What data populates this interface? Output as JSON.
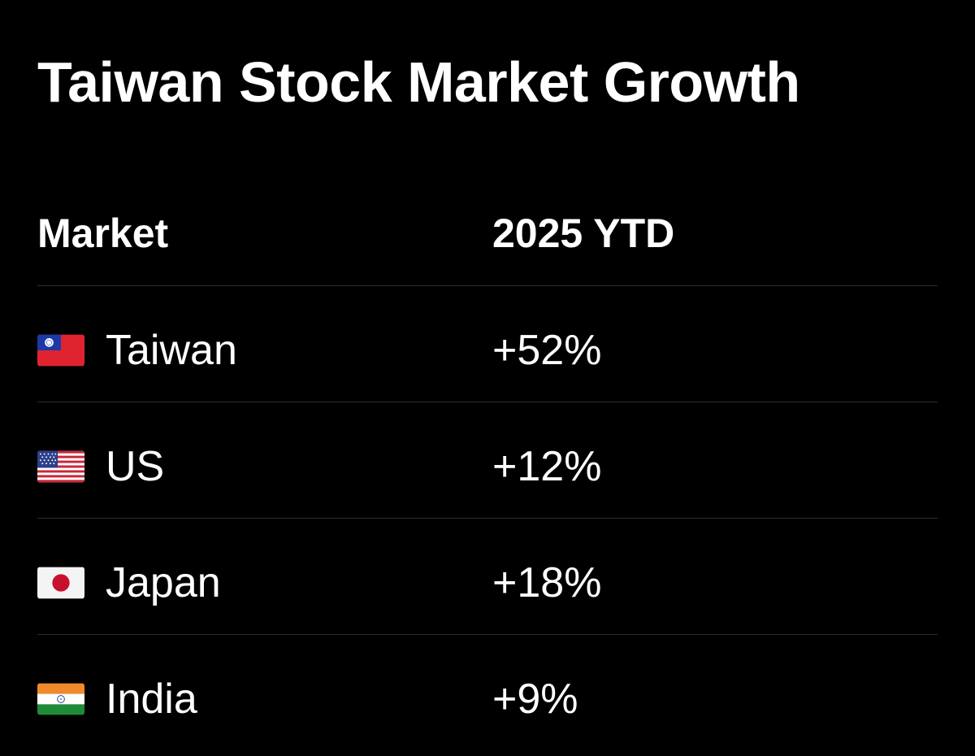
{
  "title": "Taiwan Stock Market Growth",
  "table": {
    "headers": {
      "market": "Market",
      "ytd": "2025 YTD"
    },
    "rows": [
      {
        "flag": "taiwan-flag-icon",
        "market": "Taiwan",
        "ytd": "+52%"
      },
      {
        "flag": "us-flag-icon",
        "market": "US",
        "ytd": "+12%"
      },
      {
        "flag": "japan-flag-icon",
        "market": "Japan",
        "ytd": "+18%"
      },
      {
        "flag": "india-flag-icon",
        "market": "India",
        "ytd": "+9%"
      }
    ]
  },
  "colors": {
    "background": "#000000",
    "text": "#ffffff",
    "divider": "#2c2c2e"
  }
}
